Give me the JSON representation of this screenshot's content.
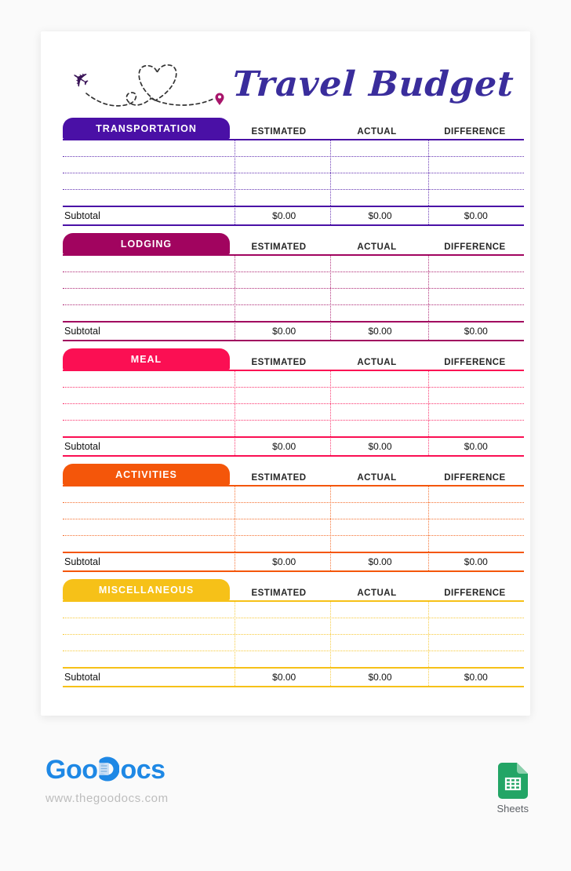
{
  "header": {
    "title": "Travel Budget"
  },
  "table": {
    "column_headers": [
      "ESTIMATED",
      "ACTUAL",
      "DIFFERENCE"
    ],
    "subtotal_label": "Subtotal",
    "empty_row_count": 4
  },
  "sections": [
    {
      "label": "TRANSPORTATION",
      "color": "#4A10A6",
      "subtotals": [
        "$0.00",
        "$0.00",
        "$0.00"
      ]
    },
    {
      "label": "LODGING",
      "color": "#A1045F",
      "subtotals": [
        "$0.00",
        "$0.00",
        "$0.00"
      ]
    },
    {
      "label": "MEAL",
      "color": "#FB0F53",
      "subtotals": [
        "$0.00",
        "$0.00",
        "$0.00"
      ]
    },
    {
      "label": "ACTIVITIES",
      "color": "#F4560A",
      "subtotals": [
        "$0.00",
        "$0.00",
        "$0.00"
      ]
    },
    {
      "label": "MISCELLANEOUS",
      "color": "#F6C118",
      "subtotals": [
        "$0.00",
        "$0.00",
        "$0.00"
      ]
    }
  ],
  "footer": {
    "logo_prefix": "Goo",
    "logo_suffix": "ocs",
    "website": "www.thegoodocs.com",
    "sheets_label": "Sheets"
  },
  "colors": {
    "title_ink": "#3A2D9C",
    "trail_ink": "#333333",
    "plane_ink": "#3A1458",
    "pin": "#A8156B",
    "logo_blue": "#1E88E5",
    "sheets_green": "#23A566"
  }
}
